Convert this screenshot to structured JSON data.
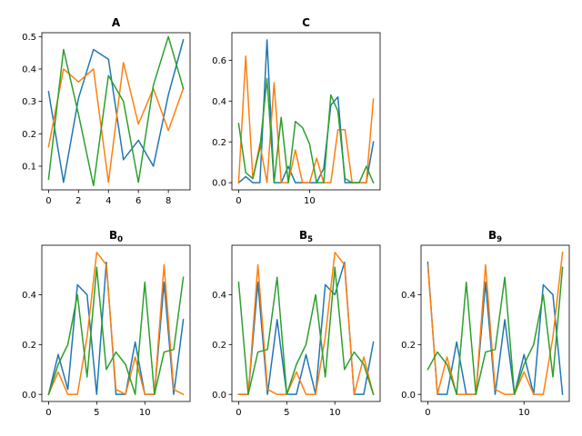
{
  "chart_data": [
    {
      "type": "line",
      "title": "A",
      "title_subscript": "",
      "xlim": [
        -0.45,
        9.45
      ],
      "ylim": [
        0.027,
        0.512
      ],
      "xticks": [
        0,
        2,
        4,
        6,
        8
      ],
      "yticks": [
        0.1,
        0.2,
        0.3,
        0.4,
        0.5
      ],
      "ytick_labels": [
        "0.1",
        "0.2",
        "0.3",
        "0.4",
        "0.5"
      ],
      "series": [
        {
          "color": "#1f77b4",
          "x": [
            0,
            1,
            2,
            3,
            4,
            5,
            6,
            7,
            8,
            9
          ],
          "y": [
            0.33,
            0.05,
            0.31,
            0.46,
            0.43,
            0.12,
            0.18,
            0.1,
            0.32,
            0.49
          ]
        },
        {
          "color": "#ff7f0e",
          "x": [
            0,
            1,
            2,
            3,
            4,
            5,
            6,
            7,
            8,
            9
          ],
          "y": [
            0.16,
            0.4,
            0.36,
            0.4,
            0.05,
            0.42,
            0.23,
            0.34,
            0.21,
            0.34
          ]
        },
        {
          "color": "#2ca02c",
          "x": [
            0,
            1,
            2,
            3,
            4,
            5,
            6,
            7,
            8,
            9
          ],
          "y": [
            0.06,
            0.46,
            0.26,
            0.04,
            0.38,
            0.3,
            0.05,
            0.35,
            0.5,
            0.34
          ]
        }
      ]
    },
    {
      "type": "line",
      "title": "C",
      "title_subscript": "",
      "xlim": [
        -0.95,
        19.95
      ],
      "ylim": [
        -0.035,
        0.735
      ],
      "xticks": [
        0,
        10
      ],
      "yticks": [
        0.0,
        0.2,
        0.4,
        0.6
      ],
      "ytick_labels": [
        "0.0",
        "0.2",
        "0.4",
        "0.6"
      ],
      "series": [
        {
          "color": "#1f77b4",
          "x": [
            0,
            1,
            2,
            3,
            4,
            5,
            6,
            7,
            8,
            9,
            10,
            11,
            12,
            13,
            14,
            15,
            16,
            17,
            18,
            19
          ],
          "y": [
            0.0,
            0.03,
            0.0,
            0.0,
            0.7,
            0.0,
            0.0,
            0.08,
            0.0,
            0.0,
            0.0,
            0.0,
            0.07,
            0.38,
            0.42,
            0.0,
            0.0,
            0.0,
            0.0,
            0.2
          ]
        },
        {
          "color": "#ff7f0e",
          "x": [
            0,
            1,
            2,
            3,
            4,
            5,
            6,
            7,
            8,
            9,
            10,
            11,
            12,
            13,
            14,
            15,
            16,
            17,
            18,
            19
          ],
          "y": [
            0.0,
            0.62,
            0.02,
            0.19,
            0.0,
            0.49,
            0.0,
            0.0,
            0.16,
            0.0,
            0.0,
            0.12,
            0.0,
            0.0,
            0.26,
            0.26,
            0.0,
            0.0,
            0.0,
            0.41
          ]
        },
        {
          "color": "#2ca02c",
          "x": [
            0,
            1,
            2,
            3,
            4,
            5,
            6,
            7,
            8,
            9,
            10,
            11,
            12,
            13,
            14,
            15,
            16,
            17,
            18,
            19
          ],
          "y": [
            0.29,
            0.05,
            0.02,
            0.17,
            0.51,
            0.0,
            0.32,
            0.0,
            0.3,
            0.27,
            0.19,
            0.0,
            0.0,
            0.43,
            0.35,
            0.02,
            0.0,
            0.0,
            0.08,
            0.0
          ]
        }
      ]
    },
    {
      "type": "line",
      "title": "B",
      "title_subscript": "0",
      "xlim": [
        -0.7,
        14.7
      ],
      "ylim": [
        -0.0285,
        0.5985
      ],
      "xticks": [
        0,
        5,
        10
      ],
      "yticks": [
        0.0,
        0.2,
        0.4
      ],
      "ytick_labels": [
        "0.0",
        "0.2",
        "0.4"
      ],
      "series": [
        {
          "color": "#1f77b4",
          "x": [
            0,
            1,
            2,
            3,
            4,
            5,
            6,
            7,
            8,
            9,
            10,
            11,
            12,
            13,
            14
          ],
          "y": [
            0.0,
            0.16,
            0.02,
            0.44,
            0.4,
            0.0,
            0.53,
            0.0,
            0.0,
            0.21,
            0.0,
            0.0,
            0.45,
            0.0,
            0.3
          ]
        },
        {
          "color": "#ff7f0e",
          "x": [
            0,
            1,
            2,
            3,
            4,
            5,
            6,
            7,
            8,
            9,
            10,
            11,
            12,
            13,
            14
          ],
          "y": [
            0.0,
            0.09,
            0.0,
            0.0,
            0.23,
            0.57,
            0.52,
            0.02,
            0.0,
            0.15,
            0.0,
            0.0,
            0.52,
            0.02,
            0.0
          ]
        },
        {
          "color": "#2ca02c",
          "x": [
            0,
            1,
            2,
            3,
            4,
            5,
            6,
            7,
            8,
            9,
            10,
            11,
            12,
            13,
            14
          ],
          "y": [
            0.0,
            0.12,
            0.2,
            0.4,
            0.07,
            0.51,
            0.1,
            0.17,
            0.12,
            0.0,
            0.45,
            0.0,
            0.17,
            0.18,
            0.47
          ]
        }
      ]
    },
    {
      "type": "line",
      "title": "B",
      "title_subscript": "5",
      "xlim": [
        -0.7,
        14.7
      ],
      "ylim": [
        -0.0285,
        0.5985
      ],
      "xticks": [
        0,
        5,
        10
      ],
      "yticks": [
        0.0,
        0.2,
        0.4
      ],
      "ytick_labels": [
        "0.0",
        "0.2",
        "0.4"
      ],
      "series": [
        {
          "color": "#1f77b4",
          "x": [
            0,
            1,
            2,
            3,
            4,
            5,
            6,
            7,
            8,
            9,
            10,
            11,
            12,
            13,
            14
          ],
          "y": [
            0.0,
            0.0,
            0.45,
            0.0,
            0.3,
            0.0,
            0.0,
            0.16,
            0.0,
            0.44,
            0.4,
            0.53,
            0.0,
            0.0,
            0.21
          ]
        },
        {
          "color": "#ff7f0e",
          "x": [
            0,
            1,
            2,
            3,
            4,
            5,
            6,
            7,
            8,
            9,
            10,
            11,
            12,
            13,
            14
          ],
          "y": [
            0.0,
            0.0,
            0.52,
            0.02,
            0.0,
            0.0,
            0.09,
            0.0,
            0.0,
            0.23,
            0.57,
            0.52,
            0.0,
            0.15,
            0.0
          ]
        },
        {
          "color": "#2ca02c",
          "x": [
            0,
            1,
            2,
            3,
            4,
            5,
            6,
            7,
            8,
            9,
            10,
            11,
            12,
            13,
            14
          ],
          "y": [
            0.45,
            0.0,
            0.17,
            0.18,
            0.47,
            0.0,
            0.12,
            0.2,
            0.4,
            0.07,
            0.51,
            0.1,
            0.17,
            0.12,
            0.0
          ]
        }
      ]
    },
    {
      "type": "line",
      "title": "B",
      "title_subscript": "9",
      "xlim": [
        -0.7,
        14.7
      ],
      "ylim": [
        -0.0285,
        0.5985
      ],
      "xticks": [
        0,
        10
      ],
      "yticks": [
        0.0,
        0.2,
        0.4
      ],
      "ytick_labels": [
        "0.0",
        "0.2",
        "0.4"
      ],
      "series": [
        {
          "color": "#1f77b4",
          "x": [
            0,
            1,
            2,
            3,
            4,
            5,
            6,
            7,
            8,
            9,
            10,
            11,
            12,
            13,
            14
          ],
          "y": [
            0.53,
            0.0,
            0.0,
            0.21,
            0.0,
            0.0,
            0.45,
            0.0,
            0.3,
            0.0,
            0.16,
            0.0,
            0.44,
            0.4,
            0.0
          ]
        },
        {
          "color": "#ff7f0e",
          "x": [
            0,
            1,
            2,
            3,
            4,
            5,
            6,
            7,
            8,
            9,
            10,
            11,
            12,
            13,
            14
          ],
          "y": [
            0.52,
            0.0,
            0.15,
            0.0,
            0.0,
            0.0,
            0.52,
            0.02,
            0.0,
            0.0,
            0.09,
            0.0,
            0.0,
            0.23,
            0.57
          ]
        },
        {
          "color": "#2ca02c",
          "x": [
            0,
            1,
            2,
            3,
            4,
            5,
            6,
            7,
            8,
            9,
            10,
            11,
            12,
            13,
            14
          ],
          "y": [
            0.1,
            0.17,
            0.12,
            0.0,
            0.45,
            0.0,
            0.17,
            0.18,
            0.47,
            0.0,
            0.12,
            0.2,
            0.4,
            0.07,
            0.51
          ]
        }
      ]
    }
  ]
}
